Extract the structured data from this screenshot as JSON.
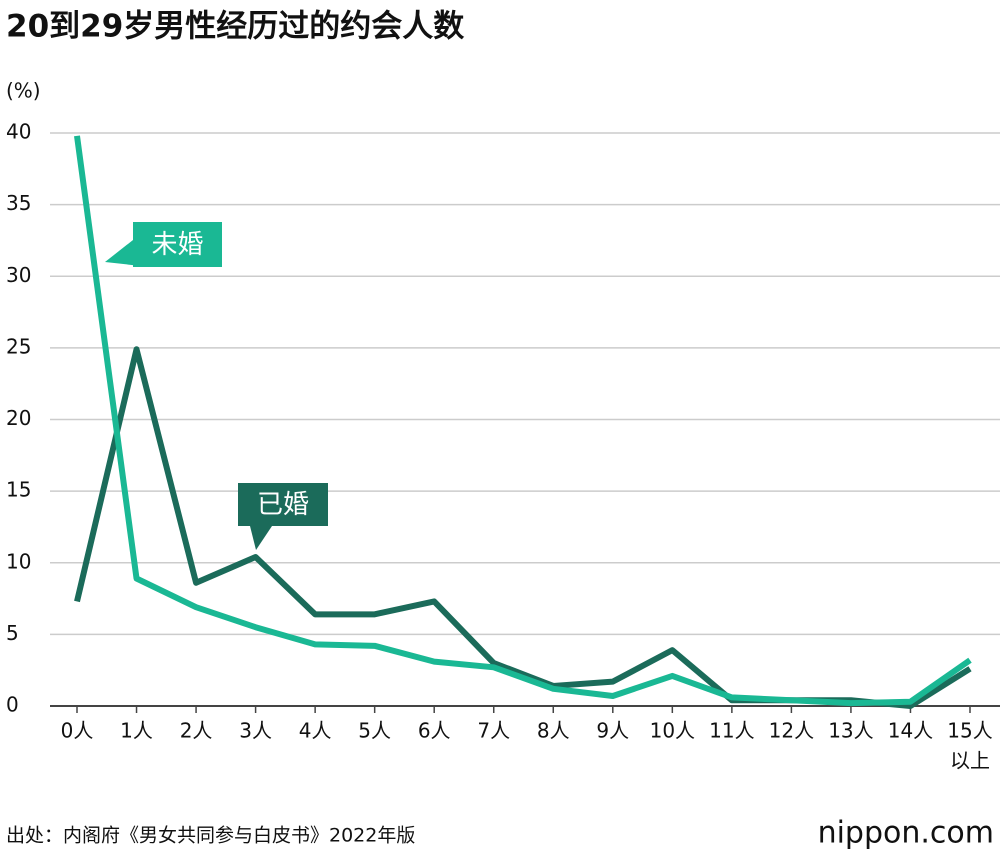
{
  "chart_data": {
    "type": "line",
    "title": "20到29岁男性经历过的约会人数",
    "y_label": "(%)",
    "categories": [
      "0人",
      "1人",
      "2人",
      "3人",
      "4人",
      "5人",
      "6人",
      "7人",
      "8人",
      "9人",
      "10人",
      "11人",
      "12人",
      "13人",
      "14人",
      [
        "15人",
        "以上"
      ]
    ],
    "series": [
      {
        "name": "未婚",
        "color": "#1ab894",
        "values": [
          39.8,
          8.9,
          6.9,
          5.5,
          4.3,
          4.2,
          3.1,
          2.7,
          1.2,
          0.7,
          2.1,
          0.6,
          0.4,
          0.2,
          0.3,
          3.2
        ]
      },
      {
        "name": "已婚",
        "color": "#1b6b5a",
        "values": [
          7.3,
          24.9,
          8.6,
          10.4,
          6.4,
          6.4,
          7.3,
          3.0,
          1.4,
          1.7,
          3.9,
          0.4,
          0.4,
          0.4,
          0.0,
          2.6
        ]
      }
    ],
    "ylim": [
      0,
      40
    ],
    "yticks": [
      0,
      5,
      10,
      15,
      20,
      25,
      30,
      35,
      40
    ],
    "grid": true,
    "source": "出处：内阁府《男女共同参与白皮书》2022年版",
    "logo": "nippon.com"
  }
}
